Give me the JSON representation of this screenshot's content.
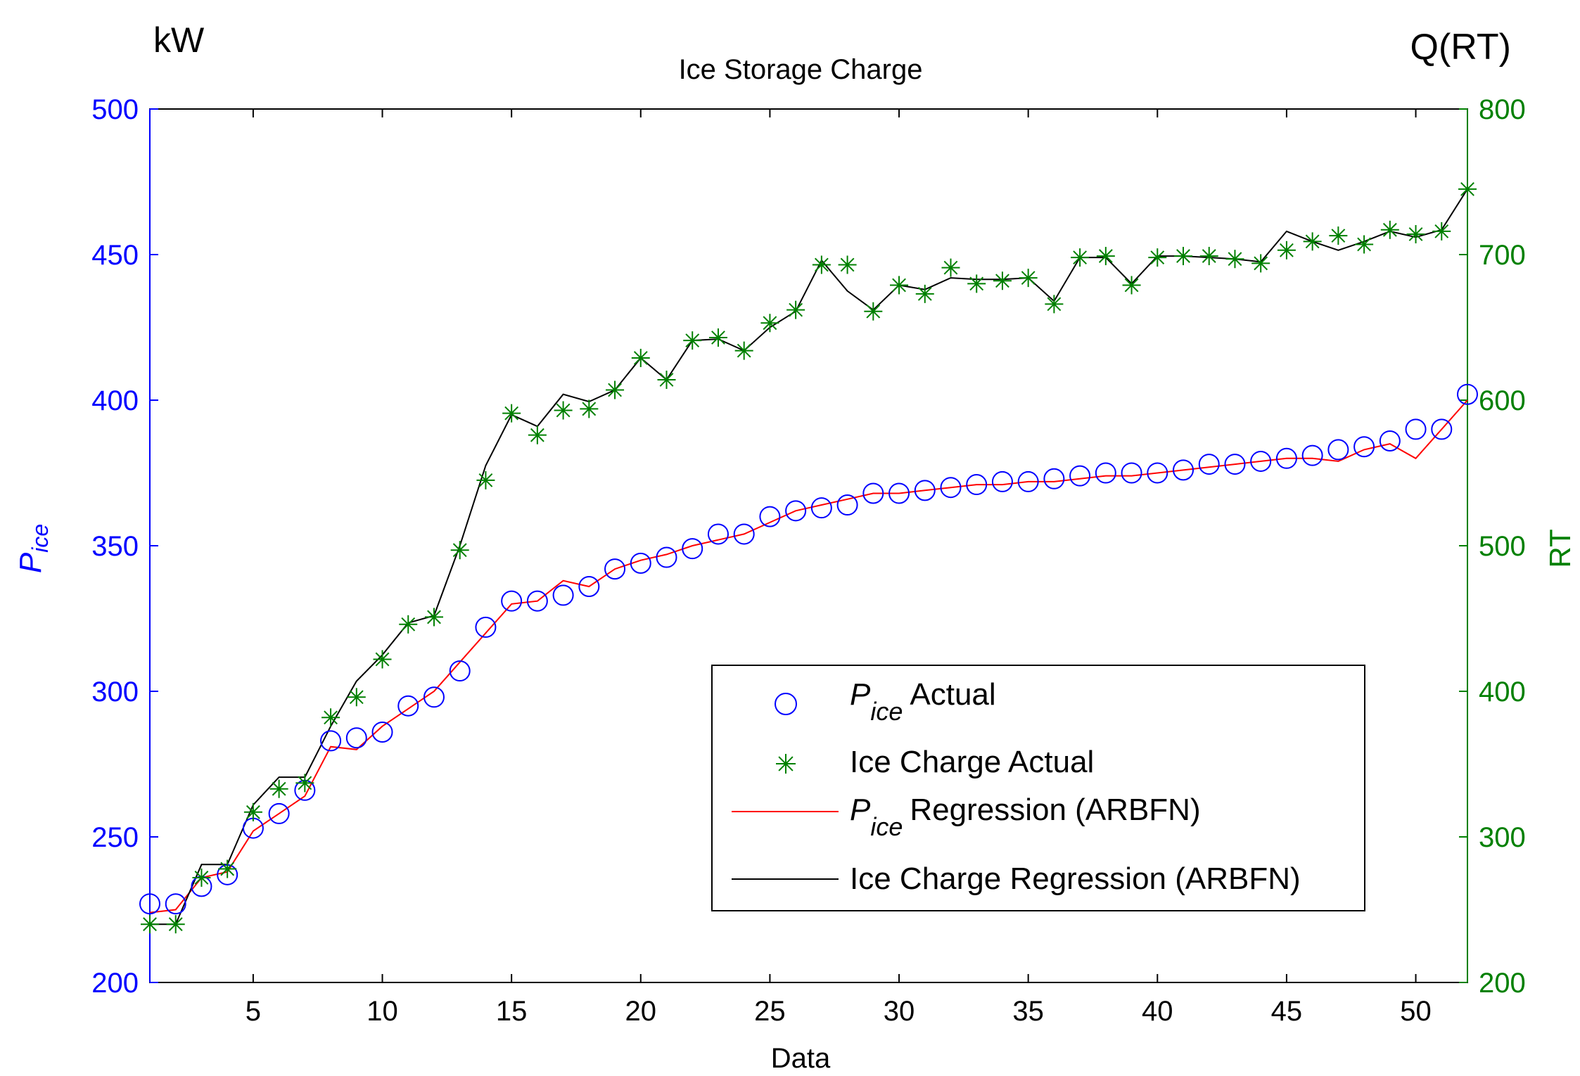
{
  "chart_data": {
    "type": "line",
    "title": "Ice Storage Charge",
    "left_unit": "kW",
    "right_unit": "Q(RT)",
    "xlabel": "Data",
    "ylabel_left": {
      "base": "P",
      "sub": "ice"
    },
    "ylabel_right": "RT",
    "xlim": [
      1,
      52
    ],
    "x_ticks": [
      5,
      10,
      15,
      20,
      25,
      30,
      35,
      40,
      45,
      50
    ],
    "ylim_left": [
      200,
      500
    ],
    "y_ticks_left": [
      200,
      250,
      300,
      350,
      400,
      450,
      500
    ],
    "ylim_right": [
      200,
      800
    ],
    "y_ticks_right": [
      200,
      300,
      400,
      500,
      600,
      700,
      800
    ],
    "colors": {
      "left_axis": "#0000ff",
      "right_axis": "#008000",
      "p_actual": "#0000ff",
      "q_actual": "#008000",
      "p_regression": "#ff0000",
      "q_regression": "#000000"
    },
    "x": [
      1,
      2,
      3,
      4,
      5,
      6,
      7,
      8,
      9,
      10,
      11,
      12,
      13,
      14,
      15,
      16,
      17,
      18,
      19,
      20,
      21,
      22,
      23,
      24,
      25,
      26,
      27,
      28,
      29,
      30,
      31,
      32,
      33,
      34,
      35,
      36,
      37,
      38,
      39,
      40,
      41,
      42,
      43,
      44,
      45,
      46,
      47,
      48,
      49,
      50,
      51,
      52
    ],
    "series": [
      {
        "name": "P_ice Actual",
        "axis": "left",
        "style": "circle",
        "values": [
          227,
          227,
          233,
          237,
          253,
          258,
          266,
          283,
          284,
          286,
          295,
          298,
          307,
          322,
          331,
          331,
          333,
          336,
          342,
          344,
          346,
          349,
          354,
          354,
          360,
          362,
          363,
          364,
          368,
          368,
          369,
          370,
          371,
          372,
          372,
          373,
          374,
          375,
          375,
          375,
          376,
          378,
          378,
          379,
          380,
          381,
          383,
          384,
          386,
          390,
          390,
          402
        ]
      },
      {
        "name": "Ice Charge Actual",
        "axis": "right",
        "style": "star",
        "values": [
          240,
          240,
          272,
          278,
          317,
          333,
          337,
          382,
          396,
          422,
          446,
          451,
          497,
          545,
          591,
          576,
          593,
          594,
          607,
          629,
          614,
          641,
          643,
          634,
          653,
          662,
          693,
          693,
          661,
          679,
          673,
          691,
          680,
          682,
          684,
          666,
          698,
          699,
          679,
          698,
          699,
          699,
          697,
          694,
          703,
          709,
          713,
          707,
          717,
          714,
          716,
          745
        ]
      },
      {
        "name": "P_ice Regression (ARBFN)",
        "axis": "left",
        "style": "line",
        "values": [
          224,
          225,
          236,
          238,
          252,
          258,
          264,
          281,
          280,
          288,
          294,
          300,
          310,
          320,
          330,
          331,
          338,
          336,
          342,
          345,
          347,
          350,
          352,
          354,
          358,
          362,
          364,
          366,
          368,
          368,
          369,
          370,
          371,
          371,
          372,
          372,
          373,
          374,
          374,
          375,
          376,
          377,
          378,
          379,
          380,
          380,
          379,
          383,
          385,
          380,
          390,
          400
        ]
      },
      {
        "name": "Ice Charge Regression (ARBFN)",
        "axis": "right",
        "style": "line",
        "values": [
          240,
          240,
          281,
          281,
          322,
          341,
          341,
          376,
          407,
          425,
          447,
          452,
          500,
          555,
          590,
          582,
          604,
          599,
          607,
          629,
          614,
          641,
          642,
          634,
          650,
          661,
          696,
          675,
          662,
          679,
          676,
          684,
          683,
          683,
          684,
          668,
          698,
          698,
          680,
          699,
          699,
          698,
          697,
          695,
          716,
          709,
          703,
          709,
          716,
          712,
          717,
          745
        ]
      }
    ],
    "legend": {
      "placement": "lower-right",
      "items": [
        {
          "base": "P",
          "sub": "ice",
          "text": "Actual"
        },
        {
          "text": "Ice Charge Actual"
        },
        {
          "base": "P",
          "sub": "ice",
          "text": "Regression (ARBFN)"
        },
        {
          "text": "Ice Charge Regression (ARBFN)"
        }
      ]
    }
  }
}
